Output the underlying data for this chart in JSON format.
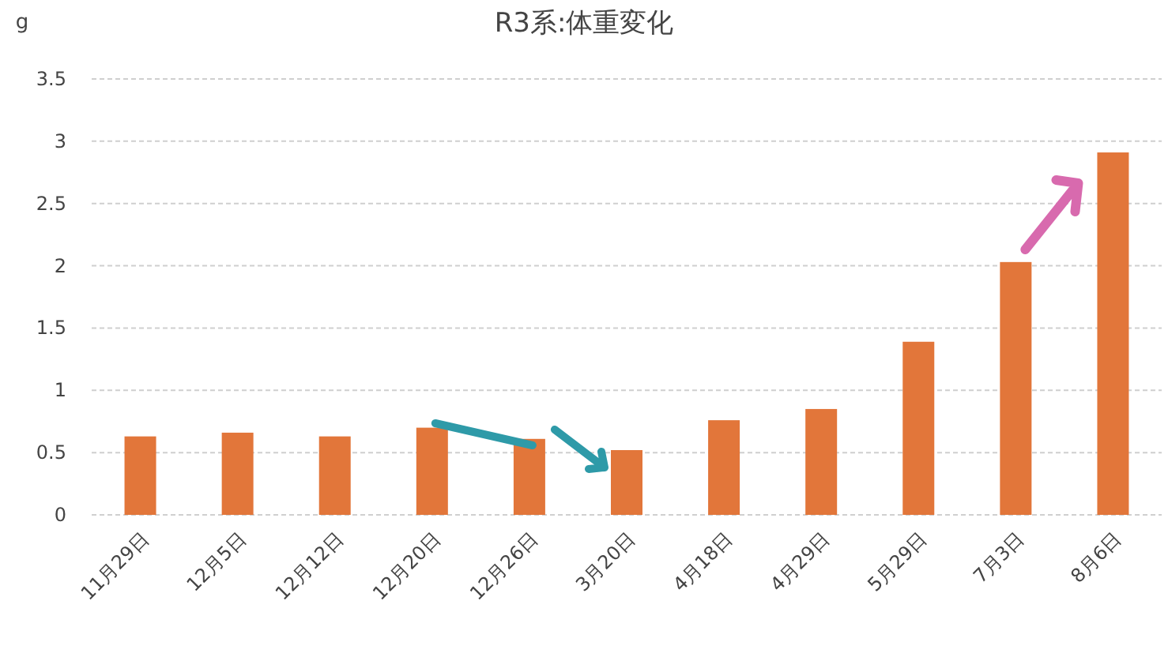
{
  "chart_data": {
    "type": "bar",
    "title": "R3系:体重変化",
    "ylabel": "g",
    "categories": [
      "11月29日",
      "12月5日",
      "12月12日",
      "12月20日",
      "12月26日",
      "3月20日",
      "4月18日",
      "4月29日",
      "5月29日",
      "7月3日",
      "8月6日"
    ],
    "values": [
      0.63,
      0.66,
      0.63,
      0.7,
      0.61,
      0.52,
      0.76,
      0.85,
      1.39,
      2.03,
      2.91
    ],
    "color": "#e2763a",
    "ylim": [
      0,
      3.5
    ],
    "yticks": [
      0,
      0.5,
      1,
      1.5,
      2,
      2.5,
      3,
      3.5
    ],
    "grid": "y"
  }
}
